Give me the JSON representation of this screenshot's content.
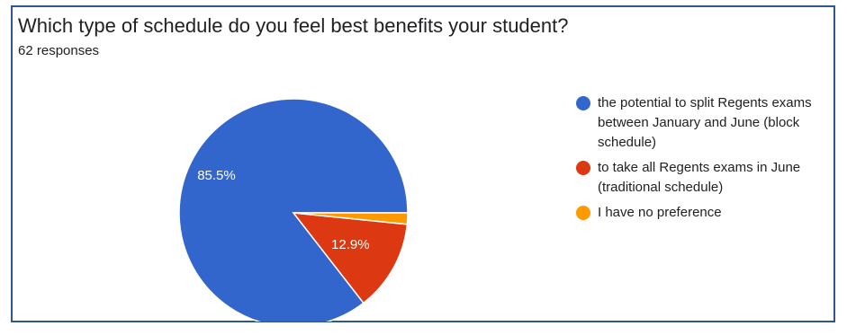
{
  "title": "Which type of schedule do you feel best benefits your student?",
  "responses": "62 responses",
  "chart_data": {
    "type": "pie",
    "categories": [
      "the potential to split Regents exams between January and June (block schedule)",
      "to take all Regents exams in June (traditional schedule)",
      "I have no preference"
    ],
    "values": [
      85.5,
      12.9,
      1.6
    ],
    "value_labels": [
      "85.5%",
      "12.9%",
      ""
    ],
    "colors": [
      "#3366cc",
      "#dc3912",
      "#ff9900"
    ],
    "legend_position": "right"
  }
}
